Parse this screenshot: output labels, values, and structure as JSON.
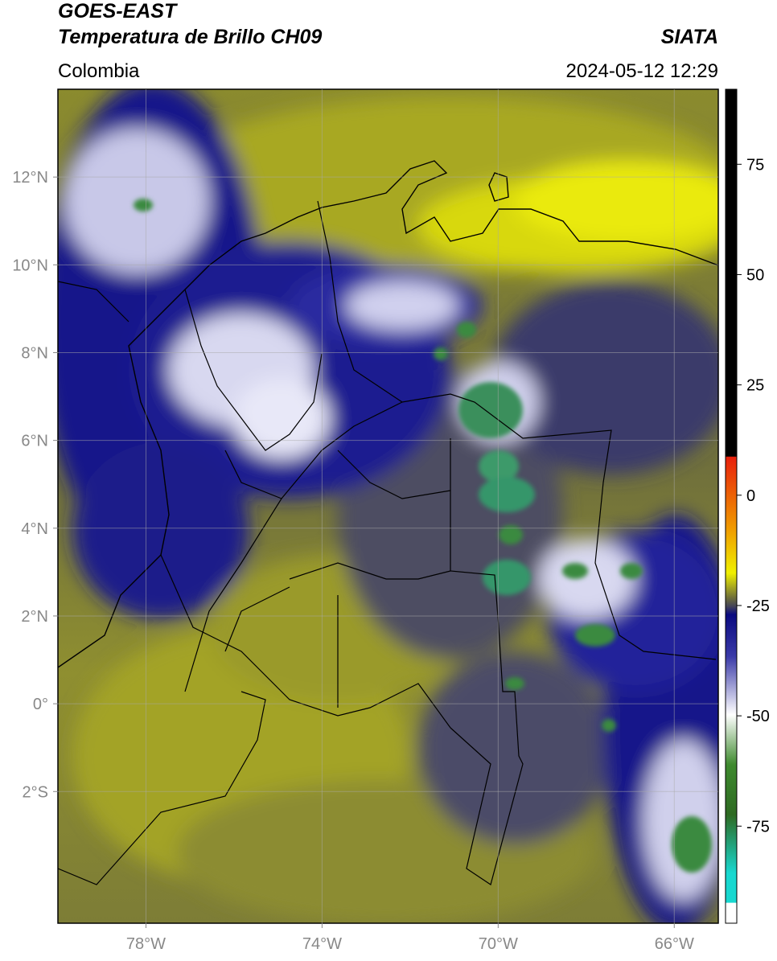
{
  "header": {
    "satellite": "GOES-EAST",
    "product": "Temperatura de Brillo CH09",
    "source": "SIATA",
    "region": "Colombia",
    "datetime": "2024-05-12 12:29"
  },
  "map": {
    "xlim": [
      -80,
      -65
    ],
    "ylim": [
      -5,
      14
    ],
    "grid": true,
    "xticks": [
      {
        "value": -78,
        "label": "78°W"
      },
      {
        "value": -74,
        "label": "74°W"
      },
      {
        "value": -70,
        "label": "70°W"
      },
      {
        "value": -66,
        "label": "66°W"
      }
    ],
    "yticks": [
      {
        "value": 12,
        "label": "12°N"
      },
      {
        "value": 10,
        "label": "10°N"
      },
      {
        "value": 8,
        "label": "8°N"
      },
      {
        "value": 6,
        "label": "6°N"
      },
      {
        "value": 4,
        "label": "4°N"
      },
      {
        "value": 2,
        "label": "2°N"
      },
      {
        "value": 0,
        "label": "0°"
      },
      {
        "value": -2,
        "label": "2°S"
      }
    ]
  },
  "colorbar": {
    "range": [
      -97,
      92
    ],
    "ticks": [
      75,
      50,
      25,
      0,
      -25,
      -50,
      -75
    ]
  }
}
